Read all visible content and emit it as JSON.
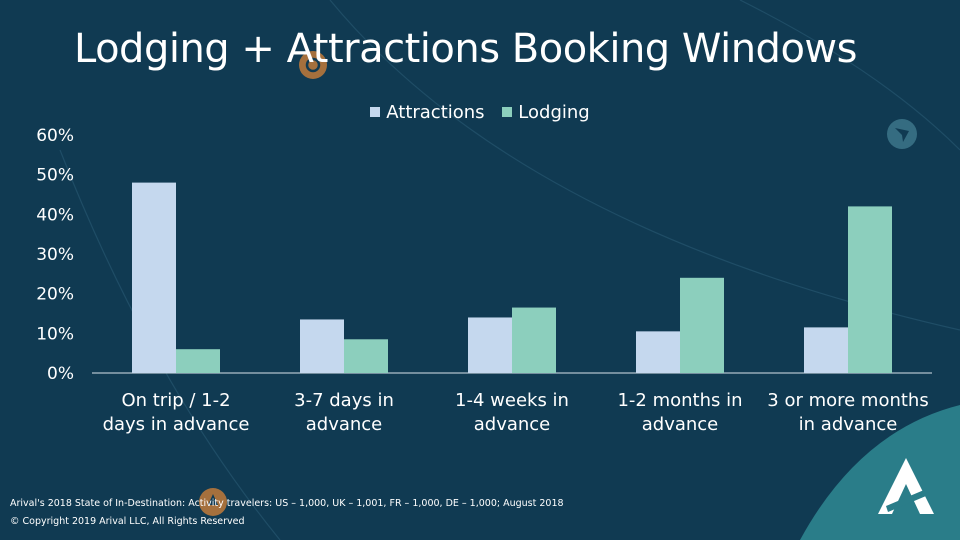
{
  "title": "Lodging + Attractions Booking Windows",
  "footer": {
    "source": "Arival's 2018 State of In-Destination: Activity travelers: US – 1,000, UK – 1,001, FR – 1,000, DE – 1,000; August 2018",
    "copyright": "© Copyright 2019 Arival LLC, All Rights Reserved"
  },
  "colors": {
    "background": "#103a52",
    "attractions": "#c5d8ee",
    "lodging": "#8ccfbd",
    "accent": "#2e7f8c",
    "decor": "#c07a3a"
  },
  "icons": [
    "pin-icon",
    "navigation-arrow-icon",
    "arival-logo-icon"
  ],
  "chart_data": {
    "type": "bar",
    "title": "Lodging + Attractions Booking Windows",
    "categories": [
      "On trip / 1-2 days in advance",
      "3-7 days in advance",
      "1-4 weeks in advance",
      "1-2 months in advance",
      "3 or more months in advance"
    ],
    "series": [
      {
        "name": "Attractions",
        "values": [
          48,
          13.5,
          14,
          10.5,
          11.5
        ]
      },
      {
        "name": "Lodging",
        "values": [
          6,
          8.5,
          16.5,
          24,
          42
        ]
      }
    ],
    "ylim": [
      0,
      60
    ],
    "yticks": [
      "0%",
      "10%",
      "20%",
      "30%",
      "40%",
      "50%",
      "60%"
    ],
    "legend_position": "top-center",
    "grid": false
  }
}
